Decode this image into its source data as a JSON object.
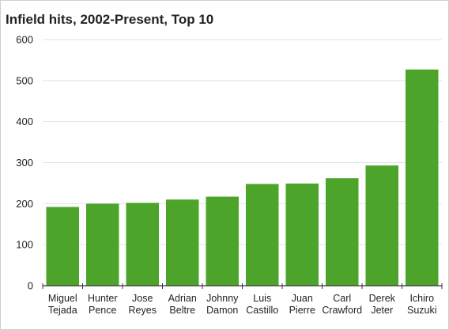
{
  "chart_data": {
    "type": "bar",
    "title": "Infield hits, 2002-Present, Top 10",
    "xlabel": "",
    "ylabel": "",
    "ylim": [
      0,
      600
    ],
    "yticks": [
      "0",
      "100",
      "200",
      "300",
      "400",
      "500",
      "600"
    ],
    "grid": true,
    "bar_color": "#4ca52a",
    "categories": [
      [
        "Miguel",
        "Tejada"
      ],
      [
        "Hunter",
        "Pence"
      ],
      [
        "Jose",
        "Reyes"
      ],
      [
        "Adrian",
        "Beltre"
      ],
      [
        "Johnny",
        "Damon"
      ],
      [
        "Luis",
        "Castillo"
      ],
      [
        "Juan",
        "Pierre"
      ],
      [
        "Carl",
        "Crawford"
      ],
      [
        "Derek",
        "Jeter"
      ],
      [
        "Ichiro",
        "Suzuki"
      ]
    ],
    "values": [
      192,
      200,
      202,
      210,
      217,
      248,
      249,
      262,
      293,
      527
    ]
  }
}
